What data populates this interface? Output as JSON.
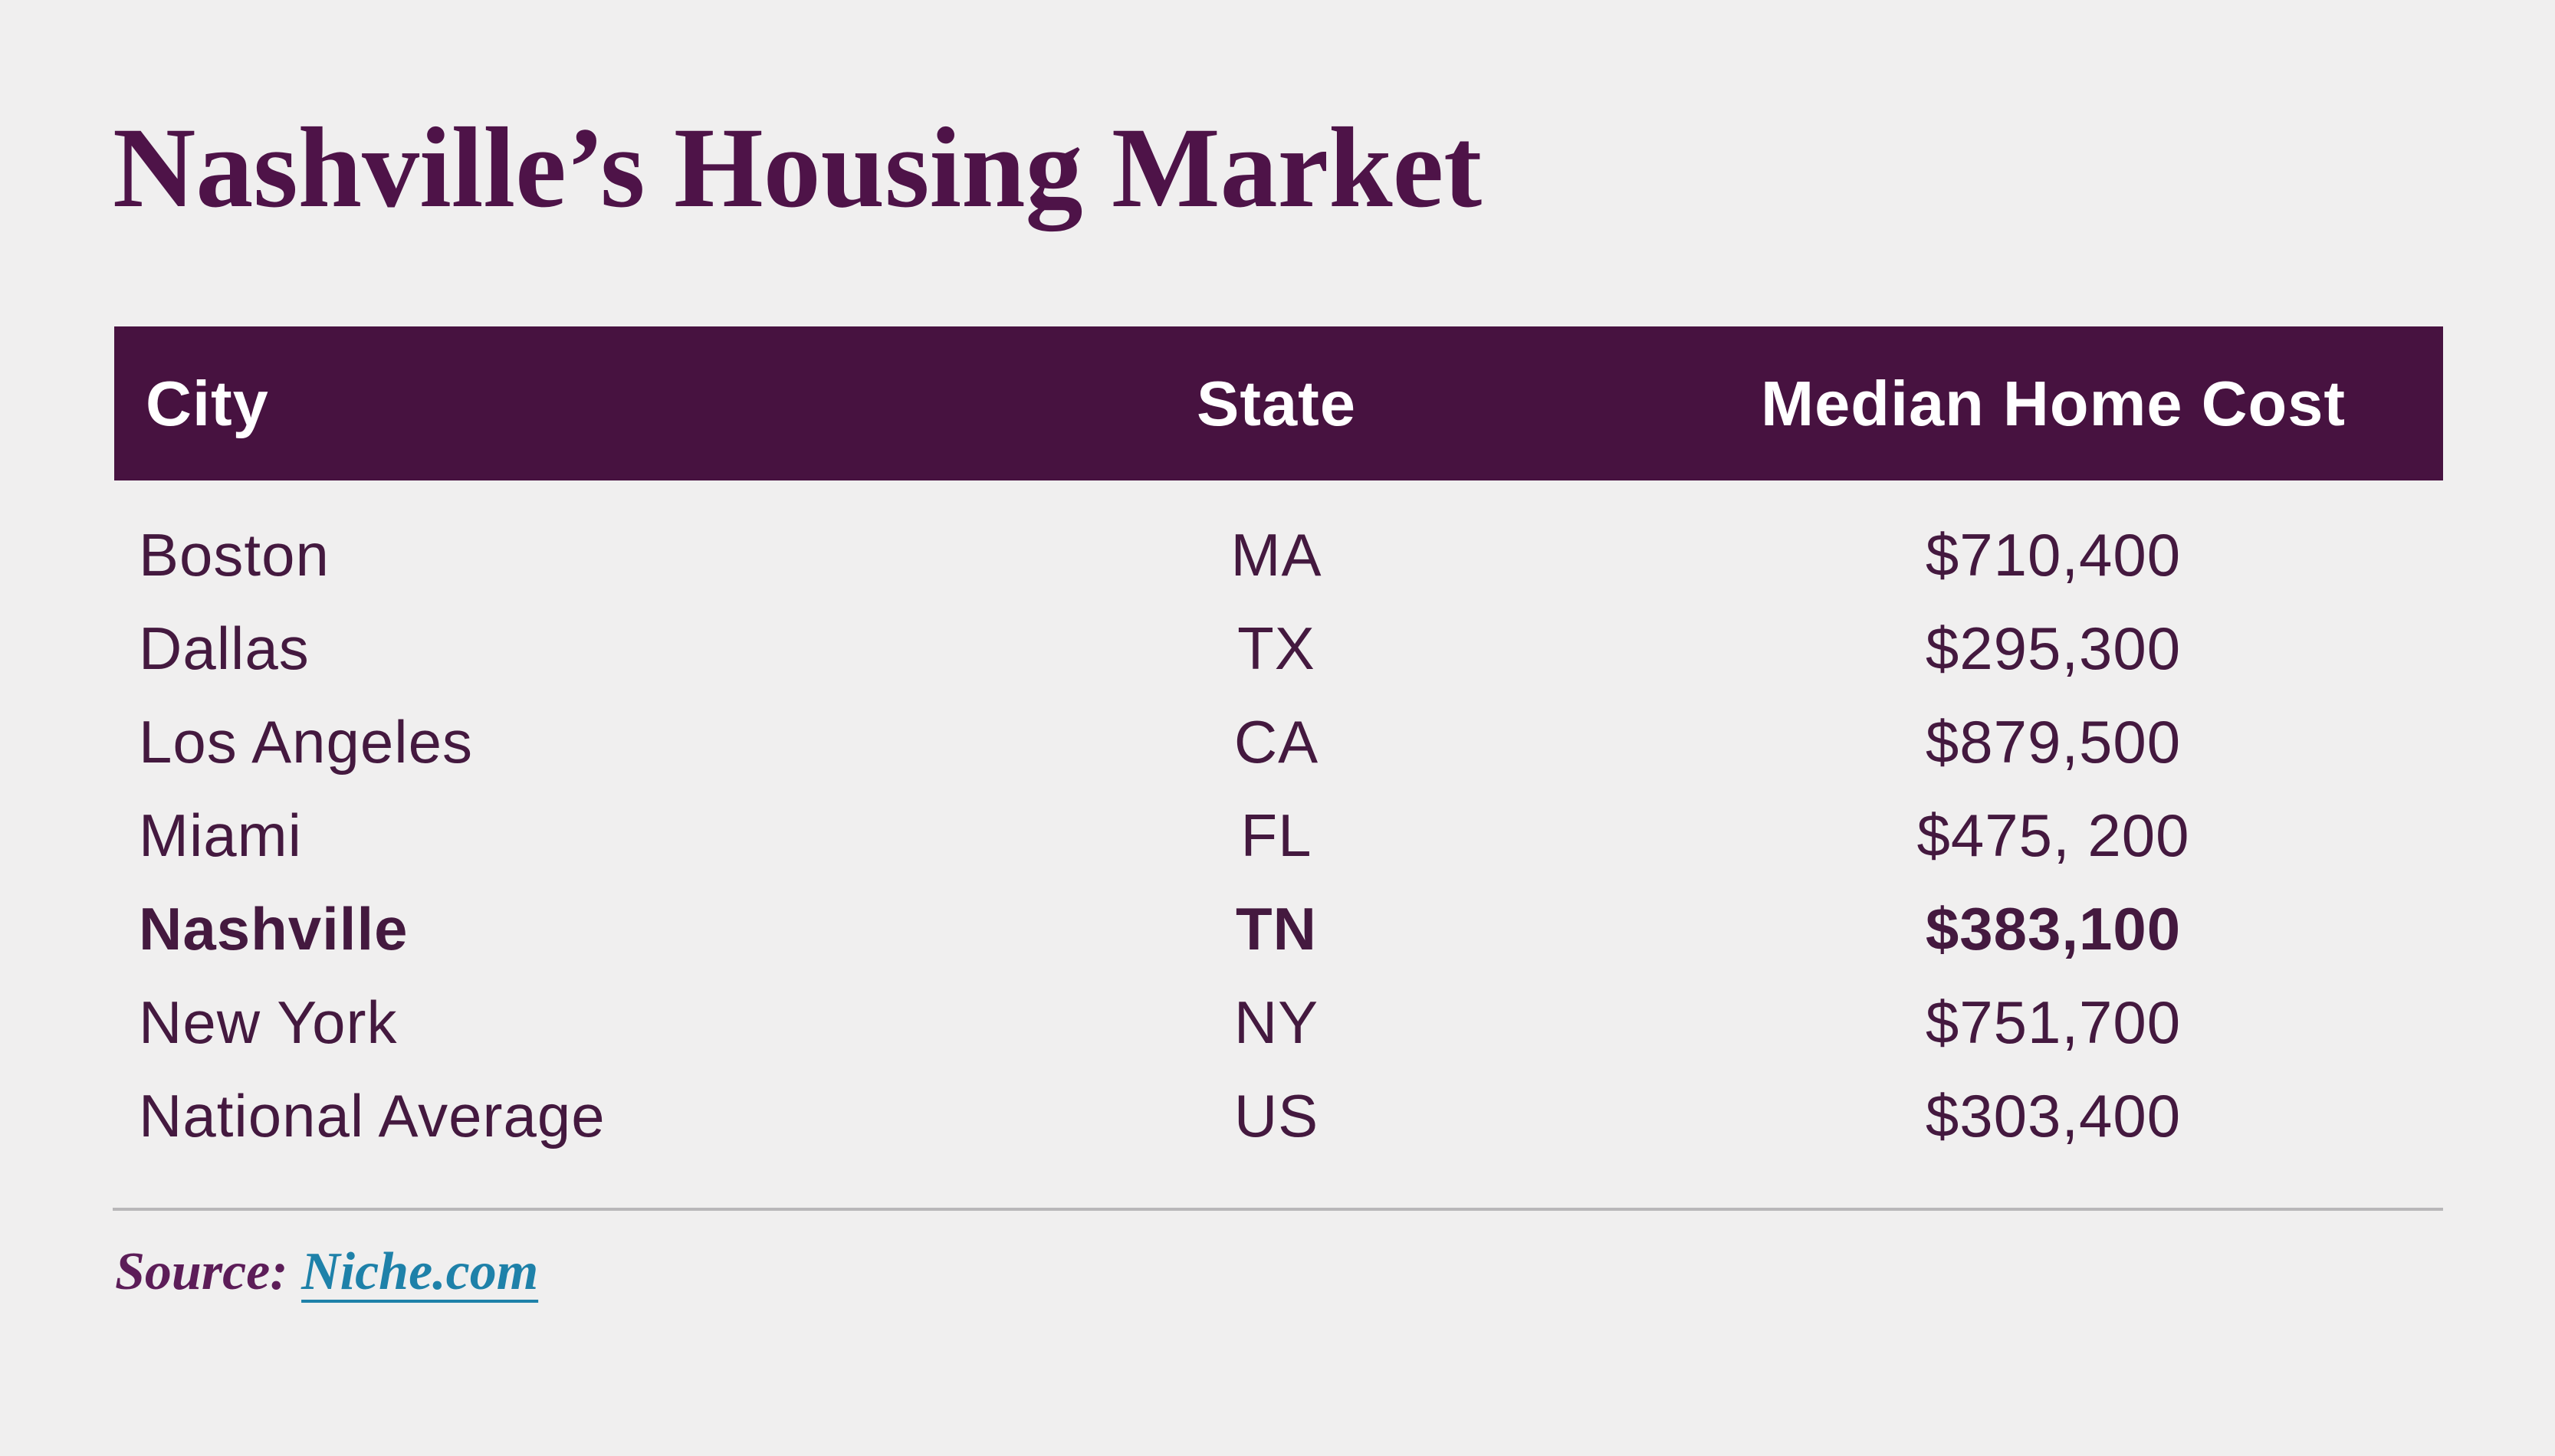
{
  "title": "Nashville’s Housing Market",
  "table": {
    "headers": {
      "city": "City",
      "state": "State",
      "cost": "Median Home Cost"
    },
    "rows": [
      {
        "city": "Boston",
        "state": "MA",
        "cost": "$710,400",
        "bold": false
      },
      {
        "city": "Dallas",
        "state": "TX",
        "cost": "$295,300",
        "bold": false
      },
      {
        "city": "Los Angeles",
        "state": "CA",
        "cost": "$879,500",
        "bold": false
      },
      {
        "city": "Miami",
        "state": "FL",
        "cost": "$475, 200",
        "bold": false
      },
      {
        "city": "Nashville",
        "state": "TN",
        "cost": "$383,100",
        "bold": true
      },
      {
        "city": "New York",
        "state": "NY",
        "cost": "$751,700",
        "bold": false
      },
      {
        "city": "National Average",
        "state": "US",
        "cost": "$303,400",
        "bold": false
      }
    ]
  },
  "footer": {
    "source_label": "Source:",
    "link_text": "Niche.com"
  },
  "colors": {
    "background": "#f0efef",
    "band": "#471240",
    "band_text": "#ffffff",
    "title": "#4e1348",
    "row_text": "#44193f",
    "source": "#5c1d58",
    "link": "#1e81a9",
    "divider": "#b9b7b9"
  },
  "chart_data": {
    "type": "table",
    "title": "Nashville’s Housing Market",
    "columns": [
      "City",
      "State",
      "Median Home Cost"
    ],
    "rows": [
      [
        "Boston",
        "MA",
        "$710,400"
      ],
      [
        "Dallas",
        "TX",
        "$295,300"
      ],
      [
        "Los Angeles",
        "CA",
        "$879,500"
      ],
      [
        "Miami",
        "FL",
        "$475, 200"
      ],
      [
        "Nashville",
        "TN",
        "$383,100"
      ],
      [
        "New York",
        "NY",
        "$751,700"
      ],
      [
        "National Average",
        "US",
        "$303,400"
      ]
    ],
    "values_numeric": [
      710400,
      295300,
      879500,
      475200,
      383100,
      751700,
      303400
    ],
    "highlighted_row": "Nashville",
    "source": "Niche.com"
  }
}
